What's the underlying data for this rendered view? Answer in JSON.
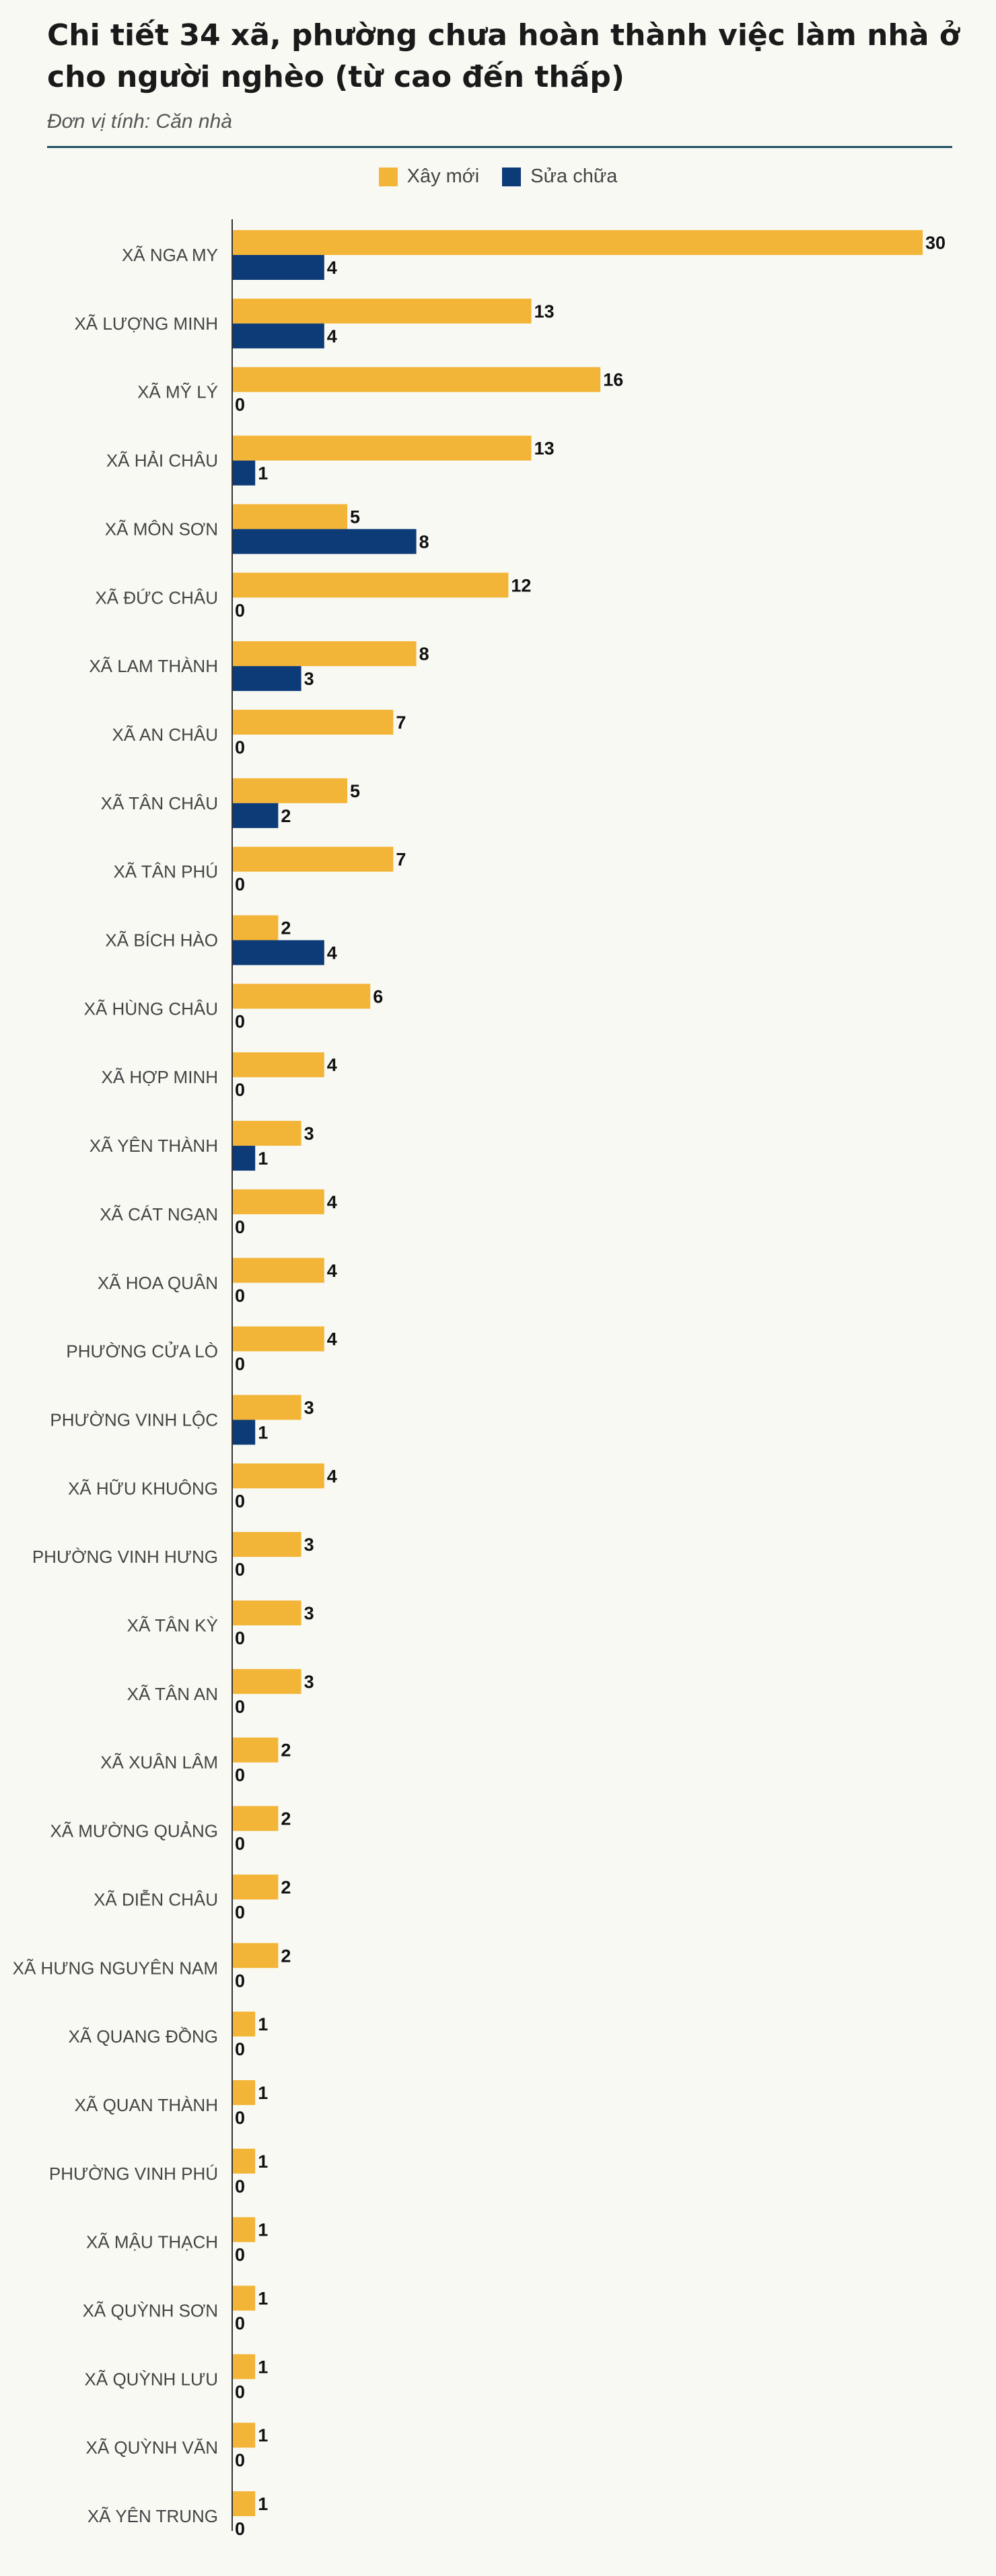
{
  "header": {
    "title": "Chi tiết 34 xã, phường chưa hoàn thành việc làm nhà ở cho người nghèo (từ cao đến thấp)",
    "subtitle": "Đơn vị tính: Căn nhà"
  },
  "colors": {
    "new": "#f3b537",
    "repair": "#0d3b78",
    "axis": "#333333",
    "rule": "#1f4e5f"
  },
  "chart_data": {
    "type": "bar",
    "orientation": "horizontal",
    "title": "Chi tiết 34 xã, phường chưa hoàn thành việc làm nhà ở cho người nghèo (từ cao đến thấp)",
    "unit": "Đơn vị tính: Căn nhà",
    "legend_position": "top-center",
    "xlim": [
      0,
      30
    ],
    "grid": false,
    "categories": [
      "XÃ NGA MY",
      "XÃ LƯỢNG MINH",
      "XÃ MỸ LÝ",
      "XÃ HẢI CHÂU",
      "XÃ MÔN SƠN",
      "XÃ ĐỨC CHÂU",
      "XÃ LAM THÀNH",
      "XÃ AN CHÂU",
      "XÃ TÂN CHÂU",
      "XÃ TÂN PHÚ",
      "XÃ BÍCH HÀO",
      "XÃ HÙNG CHÂU",
      "XÃ HỢP MINH",
      "XÃ YÊN THÀNH",
      "XÃ CÁT NGẠN",
      "XÃ HOA QUÂN",
      "PHƯỜNG CỬA LÒ",
      "PHƯỜNG VINH LỘC",
      "XÃ HỮU KHUÔNG",
      "PHƯỜNG VINH HƯNG",
      "XÃ TÂN KỲ",
      "XÃ TÂN AN",
      "XÃ XUÂN LÂM",
      "XÃ MƯỜNG QUẢNG",
      "XÃ DIỄN CHÂU",
      "XÃ HƯNG NGUYÊN NAM",
      "XÃ QUANG ĐỒNG",
      "XÃ QUAN THÀNH",
      "PHƯỜNG VINH PHÚ",
      "XÃ MẬU THẠCH",
      "XÃ QUỲNH SƠN",
      "XÃ QUỲNH LƯU",
      "XÃ QUỲNH VĂN",
      "XÃ YÊN TRUNG"
    ],
    "series": [
      {
        "name": "Xây mới",
        "values": [
          30,
          13,
          16,
          13,
          5,
          12,
          8,
          7,
          5,
          7,
          2,
          6,
          4,
          3,
          4,
          4,
          4,
          3,
          4,
          3,
          3,
          3,
          2,
          2,
          2,
          2,
          1,
          1,
          1,
          1,
          1,
          1,
          1,
          1
        ]
      },
      {
        "name": "Sửa chữa",
        "values": [
          4,
          4,
          0,
          1,
          8,
          0,
          3,
          0,
          2,
          0,
          4,
          0,
          0,
          1,
          0,
          0,
          0,
          1,
          0,
          0,
          0,
          0,
          0,
          0,
          0,
          0,
          0,
          0,
          0,
          0,
          0,
          0,
          0,
          0
        ]
      }
    ]
  }
}
